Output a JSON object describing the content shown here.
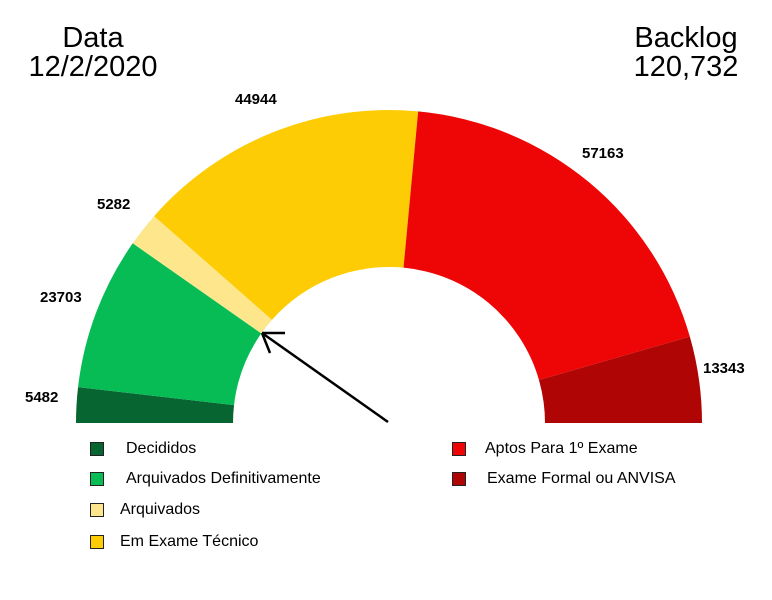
{
  "header": {
    "left_title": "Data",
    "left_value": "12/2/2020",
    "right_title": "Backlog",
    "right_value": "120,732"
  },
  "chart_data": {
    "type": "pie",
    "subtype": "half-donut",
    "title": "",
    "categories": [
      "Decididos",
      "Arquivados Definitivamente",
      "Arquivados",
      "Em Exame Técnico",
      "Aptos Para 1º Exame",
      "Exame Formal ou ANVISA"
    ],
    "values": [
      5482,
      23703,
      5282,
      44944,
      57163,
      13343
    ],
    "colors": [
      "#066530",
      "#08BC55",
      "#FDE68C",
      "#FDCC05",
      "#EE0505",
      "#B00505"
    ],
    "data_labels": [
      "5482",
      "23703",
      "5282",
      "44944",
      "57163",
      "13343"
    ],
    "annotations": [
      "arrow pointing to boundary between Arquivados Definitivamente and Arquivados"
    ],
    "legend_position": "bottom"
  },
  "legend": {
    "items": [
      {
        "label": "Decididos",
        "color": "#066530"
      },
      {
        "label": "Arquivados Definitivamente",
        "color": "#08BC55"
      },
      {
        "label": "Arquivados",
        "color": "#FDE68C"
      },
      {
        "label": "Em Exame Técnico",
        "color": "#FDCC05"
      },
      {
        "label": "Aptos Para 1º Exame",
        "color": "#EE0505"
      },
      {
        "label": "Exame Formal ou ANVISA",
        "color": "#B00505"
      }
    ]
  }
}
